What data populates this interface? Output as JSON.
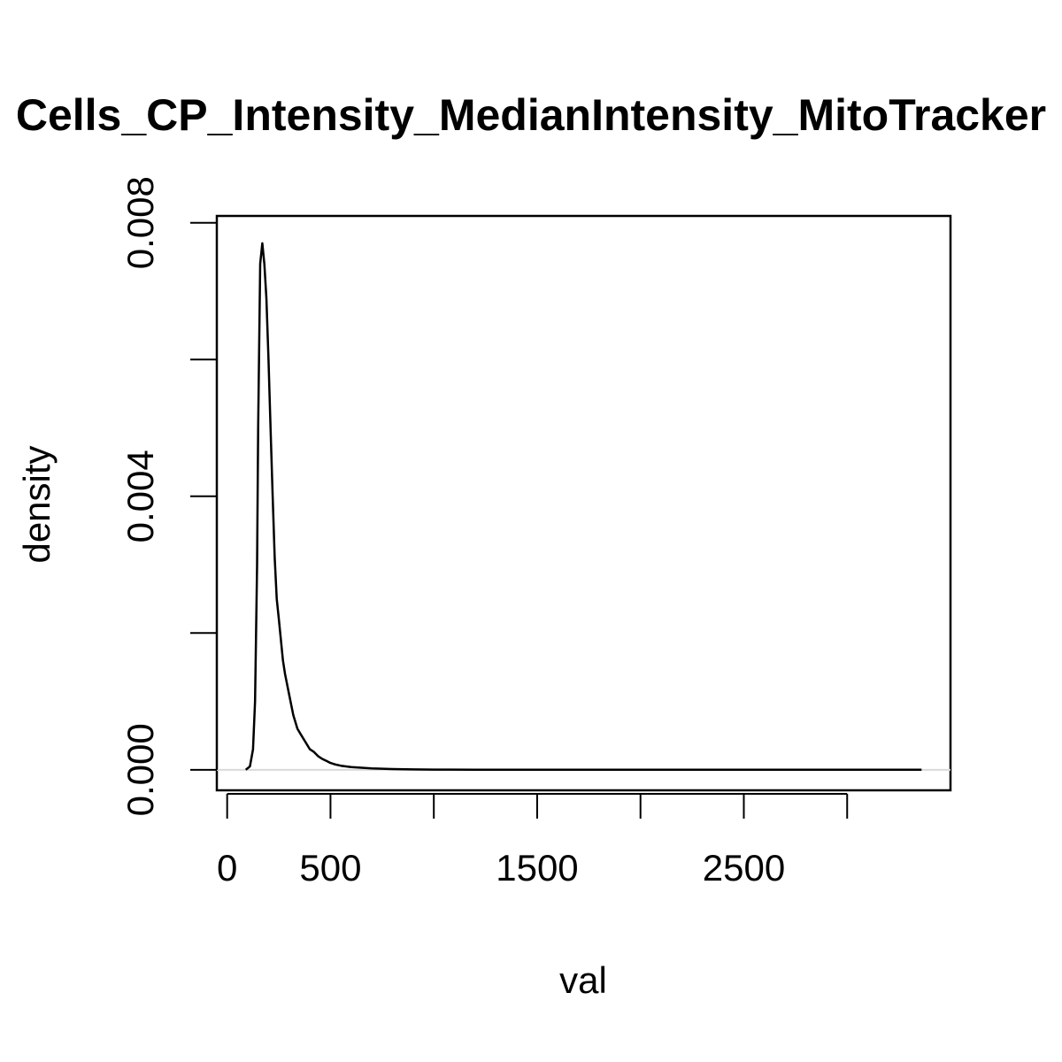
{
  "chart_data": {
    "type": "line",
    "title": "Cells_CP_Intensity_MedianIntensity_MitoTracker",
    "xlabel": "val",
    "ylabel": "density",
    "xlim": [
      -50,
      3500
    ],
    "ylim": [
      -0.0003,
      0.0081
    ],
    "x_ticks": [
      0,
      500,
      1000,
      1500,
      2000,
      2500,
      3000
    ],
    "x_tick_labels": [
      "0",
      "500",
      "",
      "1500",
      "",
      "2500",
      ""
    ],
    "y_ticks": [
      0,
      0.002,
      0.004,
      0.006,
      0.008
    ],
    "y_tick_labels": [
      "0.000",
      "",
      "0.004",
      "",
      "0.008"
    ],
    "grid": false,
    "series": [
      {
        "x": [
          90,
          110,
          125,
          135,
          145,
          150,
          160,
          170,
          180,
          190,
          200,
          210,
          220,
          230,
          240,
          250,
          260,
          270,
          280,
          300,
          320,
          340,
          360,
          380,
          400,
          420,
          440,
          460,
          480,
          500,
          520,
          550,
          600,
          650,
          700,
          800,
          900,
          1000,
          1200,
          1500,
          2000,
          2500,
          3000,
          3360
        ],
        "y": [
          0,
          5e-05,
          0.0003,
          0.001,
          0.003,
          0.005,
          0.0074,
          0.0077,
          0.0074,
          0.0069,
          0.006,
          0.005,
          0.004,
          0.0031,
          0.0025,
          0.0022,
          0.0019,
          0.0016,
          0.0014,
          0.0011,
          0.0008,
          0.0006,
          0.0005,
          0.0004,
          0.0003,
          0.00026,
          0.0002,
          0.00016,
          0.00013,
          0.0001,
          8e-05,
          6e-05,
          4e-05,
          3e-05,
          2e-05,
          1e-05,
          5e-06,
          3e-06,
          2e-06,
          1e-06,
          5e-07,
          3e-07,
          1e-07,
          0
        ]
      }
    ]
  }
}
